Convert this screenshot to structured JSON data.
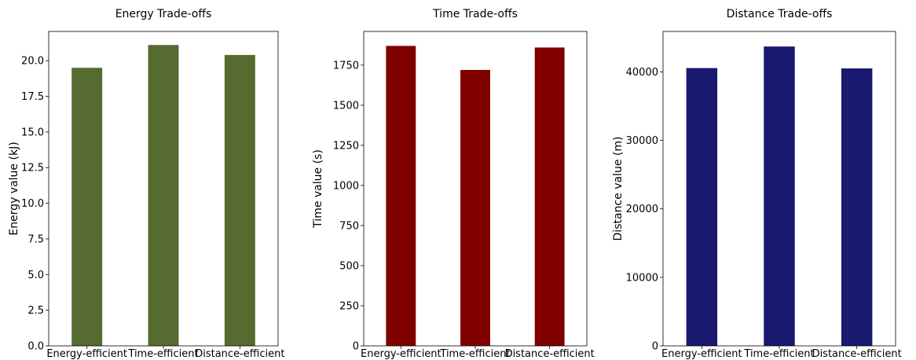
{
  "chart_data": [
    {
      "type": "bar",
      "title": "Energy Trade-offs",
      "xlabel": "",
      "ylabel": "Energy value (kJ)",
      "categories": [
        "Energy-efficient",
        "Time-efficient",
        "Distance-efficient"
      ],
      "values": [
        19.5,
        21.1,
        20.4
      ],
      "ylim": [
        0,
        22.05
      ],
      "yticks": [
        0,
        2.5,
        5,
        7.5,
        10,
        12.5,
        15,
        17.5,
        20
      ],
      "ytick_labels": [
        "0.0",
        "2.5",
        "5.0",
        "7.5",
        "10.0",
        "12.5",
        "15.0",
        "17.5",
        "20.0"
      ],
      "color": "#556b2f",
      "grid": false
    },
    {
      "type": "bar",
      "title": "Time Trade-offs",
      "xlabel": "",
      "ylabel": "Time value (s)",
      "categories": [
        "Energy-efficient",
        "Time-efficient",
        "Distance-efficient"
      ],
      "values": [
        1870,
        1720,
        1860
      ],
      "ylim": [
        0,
        1960
      ],
      "yticks": [
        0,
        250,
        500,
        750,
        1000,
        1250,
        1500,
        1750
      ],
      "ytick_labels": [
        "0",
        "250",
        "500",
        "750",
        "1000",
        "1250",
        "1500",
        "1750"
      ],
      "color": "#800000",
      "grid": false
    },
    {
      "type": "bar",
      "title": "Distance Trade-offs",
      "xlabel": "",
      "ylabel": "Distance value (m)",
      "categories": [
        "Energy-efficient",
        "Time-efficient",
        "Distance-efficient"
      ],
      "values": [
        40550,
        43700,
        40500
      ],
      "ylim": [
        0,
        45900
      ],
      "yticks": [
        0,
        10000,
        20000,
        30000,
        40000
      ],
      "ytick_labels": [
        "0",
        "10000",
        "20000",
        "30000",
        "40000"
      ],
      "color": "#191970",
      "grid": false
    }
  ]
}
